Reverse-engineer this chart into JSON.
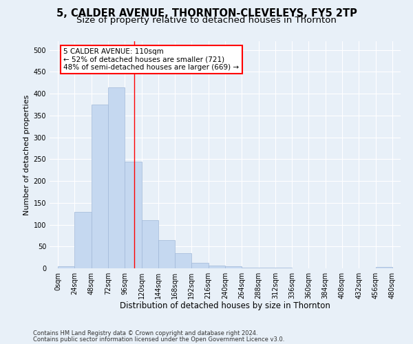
{
  "title1": "5, CALDER AVENUE, THORNTON-CLEVELEYS, FY5 2TP",
  "title2": "Size of property relative to detached houses in Thornton",
  "xlabel": "Distribution of detached houses by size in Thornton",
  "ylabel": "Number of detached properties",
  "footer1": "Contains HM Land Registry data © Crown copyright and database right 2024.",
  "footer2": "Contains public sector information licensed under the Open Government Licence v3.0.",
  "annotation_line1": "5 CALDER AVENUE: 110sqm",
  "annotation_line2": "← 52% of detached houses are smaller (721)",
  "annotation_line3": "48% of semi-detached houses are larger (669) →",
  "bar_color": "#c5d8f0",
  "bar_edge_color": "#a0b8d8",
  "red_line_x": 110,
  "bin_width": 24,
  "bin_starts": [
    0,
    24,
    48,
    72,
    96,
    120,
    144,
    168,
    192,
    216,
    240,
    264,
    288,
    312,
    336,
    360,
    384,
    408,
    432,
    456
  ],
  "bar_heights": [
    5,
    130,
    375,
    415,
    245,
    110,
    65,
    35,
    13,
    7,
    4,
    1,
    1,
    1,
    0,
    0,
    0,
    0,
    0,
    3
  ],
  "ylim": [
    0,
    520
  ],
  "yticks": [
    0,
    50,
    100,
    150,
    200,
    250,
    300,
    350,
    400,
    450,
    500
  ],
  "xlim": [
    -12,
    492
  ],
  "background_color": "#e8f0f8",
  "grid_color": "#ffffff",
  "title_fontsize": 10.5,
  "subtitle_fontsize": 9.5,
  "tick_label_fontsize": 7,
  "xlabel_fontsize": 8.5,
  "ylabel_fontsize": 8,
  "annotation_fontsize": 7.5,
  "footer_fontsize": 6
}
